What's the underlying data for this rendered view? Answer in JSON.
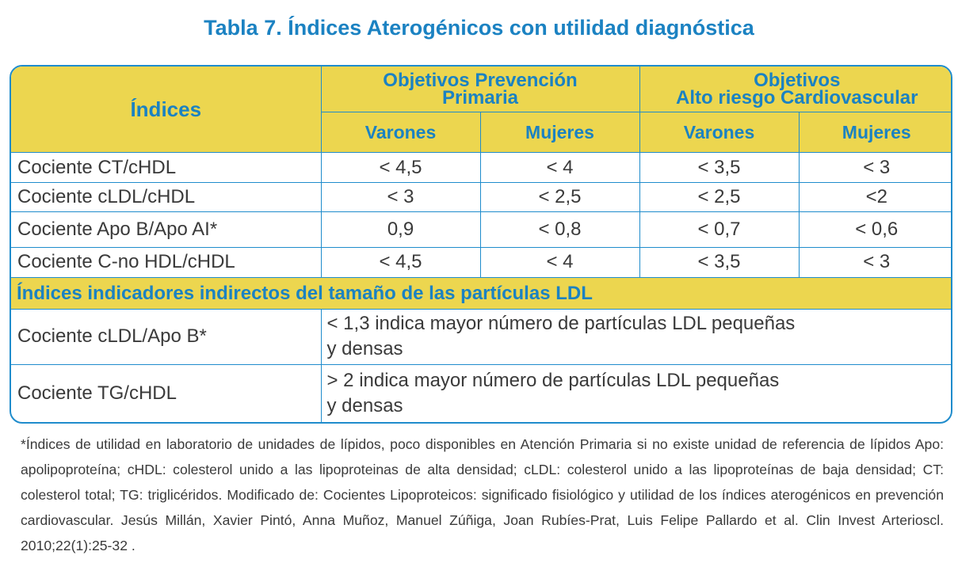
{
  "title": "Tabla 7. Índices Aterogénicos con utilidad diagnóstica",
  "header": {
    "indices": "Índices",
    "group1_line1": "Objetivos Prevención",
    "group1_line2": "Primaria",
    "group2_line1": "Objetivos",
    "group2_line2": "Alto riesgo Cardiovascular",
    "varones": "Varones",
    "mujeres": "Mujeres"
  },
  "rows": [
    {
      "label": "Cociente CT/cHDL",
      "v1": "< 4,5",
      "v2": "< 4",
      "v3": "< 3,5",
      "v4": "< 3"
    },
    {
      "label": "Cociente cLDL/cHDL",
      "v1": "< 3",
      "v2": "< 2,5",
      "v3": "< 2,5",
      "v4": "<2"
    },
    {
      "label": "Cociente Apo B/Apo AI*",
      "v1": "0,9",
      "v2": "< 0,8",
      "v3": "< 0,7",
      "v4": "< 0,6"
    },
    {
      "label": "Cociente C-no HDL/cHDL",
      "v1": "< 4,5",
      "v2": "< 4",
      "v3": "< 3,5",
      "v4": "< 3"
    }
  ],
  "section_title": "Índices indicadores indirectos del tamaño de las partículas LDL",
  "indirect_rows": [
    {
      "label": "Cociente cLDL/Apo B*",
      "line1": "< 1,3 indica mayor número de partículas LDL pequeñas",
      "line2": "y densas"
    },
    {
      "label": "Cociente TG/cHDL",
      "line1": "> 2 indica mayor número de partículas LDL pequeñas",
      "line2": "y densas"
    }
  ],
  "footnote": "*Índices de utilidad en laboratorio de unidades de lípidos, poco disponibles en Atención Primaria si no existe unidad de referencia de lípidos Apo: apolipoproteína; cHDL: colesterol unido a las lipoproteinas de alta densidad; cLDL: colesterol unido a las lipoproteínas de baja densidad; CT: colesterol total; TG: triglicéridos. Modificado de: Cocientes Lipoproteicos: significado fisiológico y utilidad de los índices aterogénicos en prevención cardiovascular. Jesús Millán, Xavier Pintó, Anna Muñoz, Manuel Zúñiga, Joan Rubíes-Prat, Luis Felipe Pallardo et al. Clin Invest Arterioscl. 2010;22(1):25-32 ."
}
